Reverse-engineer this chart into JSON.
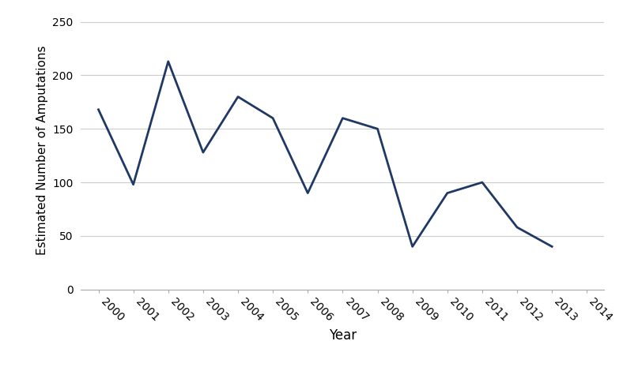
{
  "years": [
    2000,
    2001,
    2002,
    2003,
    2004,
    2005,
    2006,
    2007,
    2008,
    2009,
    2010,
    2011,
    2012,
    2013,
    2014
  ],
  "values": [
    168,
    98,
    213,
    128,
    180,
    160,
    90,
    160,
    150,
    40,
    90,
    100,
    58,
    40,
    null
  ],
  "line_color": "#1F3864",
  "line_width": 2.0,
  "ylabel": "Estimated Number of Amputations",
  "xlabel": "Year",
  "ylim": [
    0,
    260
  ],
  "yticks": [
    0,
    50,
    100,
    150,
    200,
    250
  ],
  "xlim": [
    1999.5,
    2014.5
  ],
  "background_color": "#ffffff",
  "grid_color": "#cccccc",
  "ylabel_fontsize": 11,
  "xlabel_fontsize": 12,
  "tick_fontsize": 10
}
